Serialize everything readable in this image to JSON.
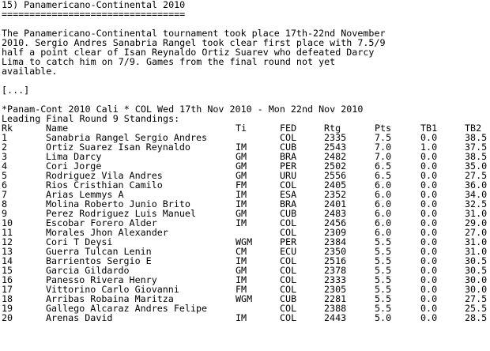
{
  "article": {
    "heading": "15) Panamericano-Continental 2010",
    "underline": "=================================",
    "paragraph": [
      "The Panamericano-Continental tournament took place 17th-22nd November",
      "2010. Sergio Andres Sanabria Rangel took clear first place with 7.5/9",
      "half a point clear of Isan Reynaldo Ortiz Suarev who defeated Darcy",
      "Lima to catch him on 7/9. Games from the final round not yet",
      "available."
    ],
    "ellipsis": "[...]",
    "event_line": "*Panam-Cont 2010 Cali * COL Wed 17th Nov 2010 - Mon 22nd Nov 2010",
    "standings_caption": "Leading Final Round 9 Standings:"
  },
  "standings": {
    "headers": {
      "rk": "Rk",
      "name": "Name",
      "ti": "Ti",
      "fed": "FED",
      "rtg": "Rtg",
      "pts": "Pts",
      "tb1": "TB1",
      "tb2": "TB2"
    },
    "rows": [
      {
        "rk": "1",
        "name": "Sanabria Rangel Sergio Andres",
        "ti": "",
        "fed": "COL",
        "rtg": "2335",
        "pts": "7.5",
        "tb1": "0.0",
        "tb2": "38.5"
      },
      {
        "rk": "2",
        "name": "Ortiz Suarez Isan Reynaldo",
        "ti": "IM",
        "fed": "CUB",
        "rtg": "2543",
        "pts": "7.0",
        "tb1": "1.0",
        "tb2": "37.5"
      },
      {
        "rk": "3",
        "name": "Lima Darcy",
        "ti": "GM",
        "fed": "BRA",
        "rtg": "2482",
        "pts": "7.0",
        "tb1": "0.0",
        "tb2": "38.5"
      },
      {
        "rk": "4",
        "name": "Cori Jorge",
        "ti": "GM",
        "fed": "PER",
        "rtg": "2502",
        "pts": "6.5",
        "tb1": "0.0",
        "tb2": "35.0"
      },
      {
        "rk": "5",
        "name": "Rodriguez Vila Andres",
        "ti": "GM",
        "fed": "URU",
        "rtg": "2556",
        "pts": "6.5",
        "tb1": "0.0",
        "tb2": "27.5"
      },
      {
        "rk": "6",
        "name": "Rios Cristhian Camilo",
        "ti": "FM",
        "fed": "COL",
        "rtg": "2405",
        "pts": "6.0",
        "tb1": "0.0",
        "tb2": "36.0"
      },
      {
        "rk": "7",
        "name": "Arias Lemmys A",
        "ti": "IM",
        "fed": "ESA",
        "rtg": "2352",
        "pts": "6.0",
        "tb1": "0.0",
        "tb2": "34.0"
      },
      {
        "rk": "8",
        "name": "Molina Roberto Junio Brito",
        "ti": "IM",
        "fed": "BRA",
        "rtg": "2401",
        "pts": "6.0",
        "tb1": "0.0",
        "tb2": "32.5"
      },
      {
        "rk": "9",
        "name": "Perez Rodriguez Luis Manuel",
        "ti": "GM",
        "fed": "CUB",
        "rtg": "2483",
        "pts": "6.0",
        "tb1": "0.0",
        "tb2": "31.0"
      },
      {
        "rk": "10",
        "name": "Escobar Forero Alder",
        "ti": "IM",
        "fed": "COL",
        "rtg": "2456",
        "pts": "6.0",
        "tb1": "0.0",
        "tb2": "29.0"
      },
      {
        "rk": "11",
        "name": "Morales Jhon Alexander",
        "ti": "",
        "fed": "COL",
        "rtg": "2309",
        "pts": "6.0",
        "tb1": "0.0",
        "tb2": "27.0"
      },
      {
        "rk": "12",
        "name": "Cori T Deysi",
        "ti": "WGM",
        "fed": "PER",
        "rtg": "2384",
        "pts": "5.5",
        "tb1": "0.0",
        "tb2": "31.0"
      },
      {
        "rk": "13",
        "name": "Guerra Tulcan Lenin",
        "ti": "CM",
        "fed": "ECU",
        "rtg": "2350",
        "pts": "5.5",
        "tb1": "0.0",
        "tb2": "31.0"
      },
      {
        "rk": "14",
        "name": "Barrientos Sergio E",
        "ti": "IM",
        "fed": "COL",
        "rtg": "2516",
        "pts": "5.5",
        "tb1": "0.0",
        "tb2": "30.5"
      },
      {
        "rk": "15",
        "name": "Garcia Gildardo",
        "ti": "GM",
        "fed": "COL",
        "rtg": "2378",
        "pts": "5.5",
        "tb1": "0.0",
        "tb2": "30.5"
      },
      {
        "rk": "16",
        "name": "Panesso Rivera Henry",
        "ti": "IM",
        "fed": "COL",
        "rtg": "2333",
        "pts": "5.5",
        "tb1": "0.0",
        "tb2": "30.0"
      },
      {
        "rk": "17",
        "name": "Vittorino Carlo Giovanni",
        "ti": "FM",
        "fed": "COL",
        "rtg": "2305",
        "pts": "5.5",
        "tb1": "0.0",
        "tb2": "30.0"
      },
      {
        "rk": "18",
        "name": "Arribas Robaina Maritza",
        "ti": "WGM",
        "fed": "CUB",
        "rtg": "2281",
        "pts": "5.5",
        "tb1": "0.0",
        "tb2": "27.5"
      },
      {
        "rk": "19",
        "name": "Gallego Alcaraz Andres Felipe",
        "ti": "",
        "fed": "COL",
        "rtg": "2388",
        "pts": "5.5",
        "tb1": "0.0",
        "tb2": "25.5"
      },
      {
        "rk": "20",
        "name": "Arenas David",
        "ti": "IM",
        "fed": "COL",
        "rtg": "2443",
        "pts": "5.0",
        "tb1": "0.0",
        "tb2": "28.5"
      }
    ]
  }
}
